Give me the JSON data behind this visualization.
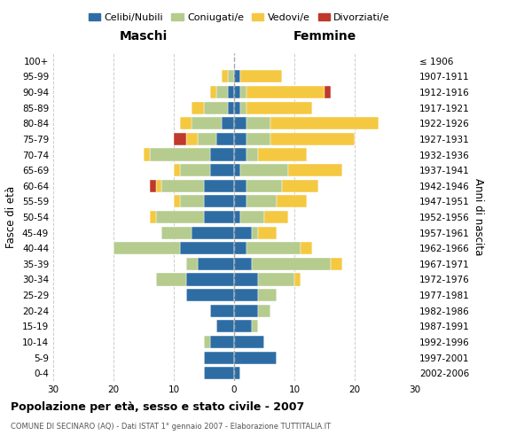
{
  "age_groups": [
    "0-4",
    "5-9",
    "10-14",
    "15-19",
    "20-24",
    "25-29",
    "30-34",
    "35-39",
    "40-44",
    "45-49",
    "50-54",
    "55-59",
    "60-64",
    "65-69",
    "70-74",
    "75-79",
    "80-84",
    "85-89",
    "90-94",
    "95-99",
    "100+"
  ],
  "birth_years": [
    "2002-2006",
    "1997-2001",
    "1992-1996",
    "1987-1991",
    "1982-1986",
    "1977-1981",
    "1972-1976",
    "1967-1971",
    "1962-1966",
    "1957-1961",
    "1952-1956",
    "1947-1951",
    "1942-1946",
    "1937-1941",
    "1932-1936",
    "1927-1931",
    "1922-1926",
    "1917-1921",
    "1912-1916",
    "1907-1911",
    "≤ 1906"
  ],
  "maschi": {
    "celibi": [
      5,
      5,
      4,
      3,
      4,
      8,
      8,
      6,
      9,
      7,
      5,
      5,
      5,
      4,
      4,
      3,
      2,
      1,
      1,
      0,
      0
    ],
    "coniugati": [
      0,
      0,
      1,
      0,
      0,
      0,
      5,
      2,
      11,
      5,
      8,
      4,
      7,
      5,
      10,
      3,
      5,
      4,
      2,
      1,
      0
    ],
    "vedovi": [
      0,
      0,
      0,
      0,
      0,
      0,
      0,
      0,
      0,
      0,
      1,
      1,
      1,
      1,
      1,
      2,
      2,
      2,
      1,
      1,
      0
    ],
    "divorziati": [
      0,
      0,
      0,
      0,
      0,
      0,
      0,
      0,
      0,
      0,
      0,
      0,
      1,
      0,
      0,
      2,
      0,
      0,
      0,
      0,
      0
    ]
  },
  "femmine": {
    "nubili": [
      1,
      7,
      5,
      3,
      4,
      4,
      4,
      3,
      2,
      3,
      1,
      2,
      2,
      1,
      2,
      2,
      2,
      1,
      1,
      1,
      0
    ],
    "coniugate": [
      0,
      0,
      0,
      1,
      2,
      3,
      6,
      13,
      9,
      1,
      4,
      5,
      6,
      8,
      2,
      4,
      4,
      1,
      1,
      0,
      0
    ],
    "vedove": [
      0,
      0,
      0,
      0,
      0,
      0,
      1,
      2,
      2,
      3,
      4,
      5,
      6,
      9,
      8,
      14,
      18,
      11,
      13,
      7,
      0
    ],
    "divorziate": [
      0,
      0,
      0,
      0,
      0,
      0,
      0,
      0,
      0,
      0,
      0,
      0,
      0,
      0,
      0,
      0,
      0,
      0,
      1,
      0,
      0
    ]
  },
  "colors": {
    "celibi": "#2e6da4",
    "coniugati": "#b5cc8e",
    "vedovi": "#f5c842",
    "divorziati": "#c0392b"
  },
  "legend_labels": [
    "Celibi/Nubili",
    "Coniugati/e",
    "Vedovi/e",
    "Divorziati/e"
  ],
  "title": "Popolazione per età, sesso e stato civile - 2007",
  "subtitle": "COMUNE DI SECINARO (AQ) - Dati ISTAT 1° gennaio 2007 - Elaborazione TUTTITALIA.IT",
  "xlabel_left": "Maschi",
  "xlabel_right": "Femmine",
  "ylabel_left": "Fasce di età",
  "ylabel_right": "Anni di nascita",
  "xlim": 30,
  "bg_color": "#ffffff",
  "grid_color": "#cccccc"
}
